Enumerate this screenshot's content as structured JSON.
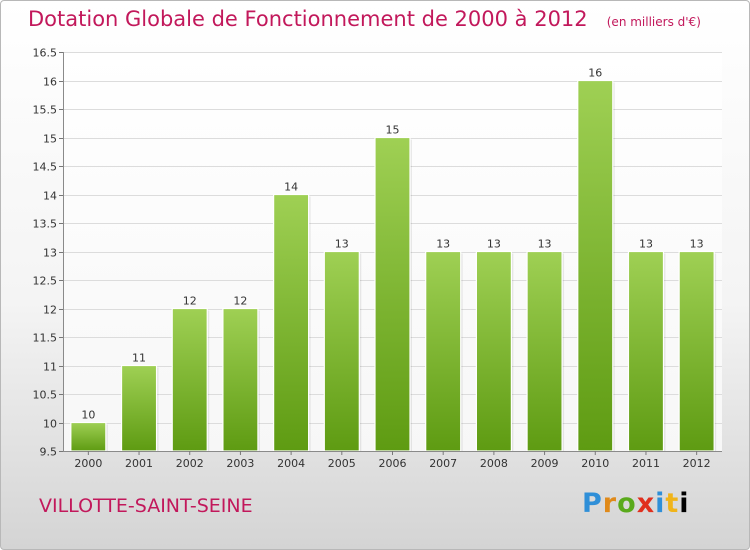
{
  "title": "Dotation Globale de Fonctionnement de 2000 à 2012",
  "subtitle": "(en milliers d'€)",
  "commune": "VILLOTTE-SAINT-SEINE",
  "logo_text": "Proxiti",
  "colors": {
    "accent": "#c2185b",
    "bar_top": "#9fd054",
    "bar_bottom": "#5e9b12",
    "grid": "#dcdcdc"
  },
  "chart_data": {
    "type": "bar",
    "title": "Dotation Globale de Fonctionnement de 2000 à 2012",
    "xlabel": "",
    "ylabel": "",
    "ylim": [
      9.5,
      16.5
    ],
    "yticks": [
      9.5,
      10,
      10.5,
      11,
      11.5,
      12,
      12.5,
      13,
      13.5,
      14,
      14.5,
      15,
      15.5,
      16,
      16.5
    ],
    "grid": true,
    "categories": [
      "2000",
      "2001",
      "2002",
      "2003",
      "2004",
      "2005",
      "2006",
      "2007",
      "2008",
      "2009",
      "2010",
      "2011",
      "2012"
    ],
    "values": [
      10,
      11,
      12,
      12,
      14,
      13,
      15,
      13,
      13,
      13,
      16,
      13,
      13
    ],
    "labels": [
      "10",
      "11",
      "12",
      "12",
      "14",
      "13",
      "15",
      "13",
      "13",
      "13",
      "16",
      "13",
      "13"
    ]
  }
}
